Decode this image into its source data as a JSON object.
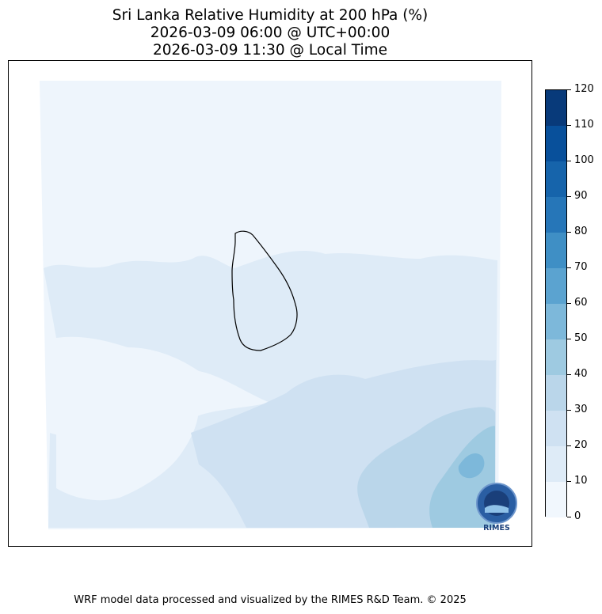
{
  "title": {
    "line1": "Sri Lanka Relative Humidity at 200 hPa (%)",
    "line2": "2026-03-09 06:00 @ UTC+00:00",
    "line3": "2026-03-09 11:30 @ Local Time"
  },
  "colorbar": {
    "ticks": [
      "0",
      "10",
      "20",
      "30",
      "40",
      "50",
      "60",
      "70",
      "80",
      "90",
      "100",
      "110",
      "120"
    ],
    "colors": [
      "#f1f7fd",
      "#deebf7",
      "#cfe1f2",
      "#bad6ea",
      "#9ecae1",
      "#7db8da",
      "#5ba3d0",
      "#3f8fc5",
      "#2676b8",
      "#1664ab",
      "#08509b",
      "#083a7a"
    ]
  },
  "logo": {
    "label": "RIMES"
  },
  "footer": "WRF model data processed and visualized by the RIMES R&D Team. © 2025"
}
